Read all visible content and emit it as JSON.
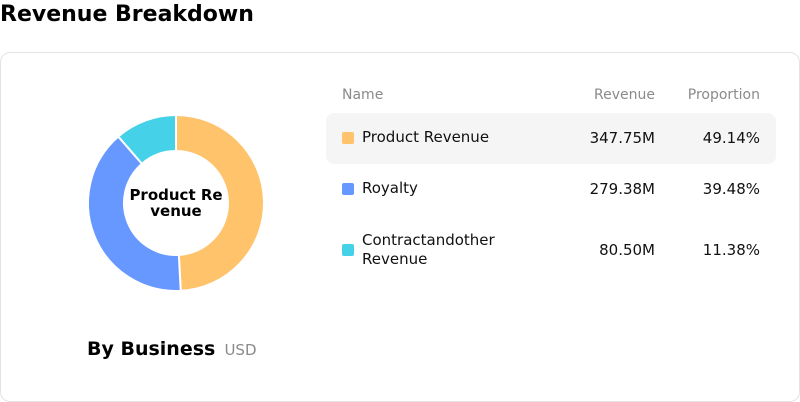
{
  "page": {
    "title": "Revenue Breakdown"
  },
  "donut": {
    "center_label": "Product Revenue"
  },
  "caption": {
    "title": "By Business",
    "unit": "USD"
  },
  "table": {
    "headers": {
      "name": "Name",
      "revenue": "Revenue",
      "proportion": "Proportion"
    },
    "rows": [
      {
        "name": "Product Revenue",
        "revenue": "347.75M",
        "proportion": "49.14%",
        "color": "#ffc36b",
        "share": 49.14
      },
      {
        "name": "Royalty",
        "revenue": "279.38M",
        "proportion": "39.48%",
        "color": "#6698ff",
        "share": 39.48
      },
      {
        "name": "Contractandother Revenue",
        "revenue": "80.50M",
        "proportion": "11.38%",
        "color": "#45d2e8",
        "share": 11.38
      }
    ]
  }
}
